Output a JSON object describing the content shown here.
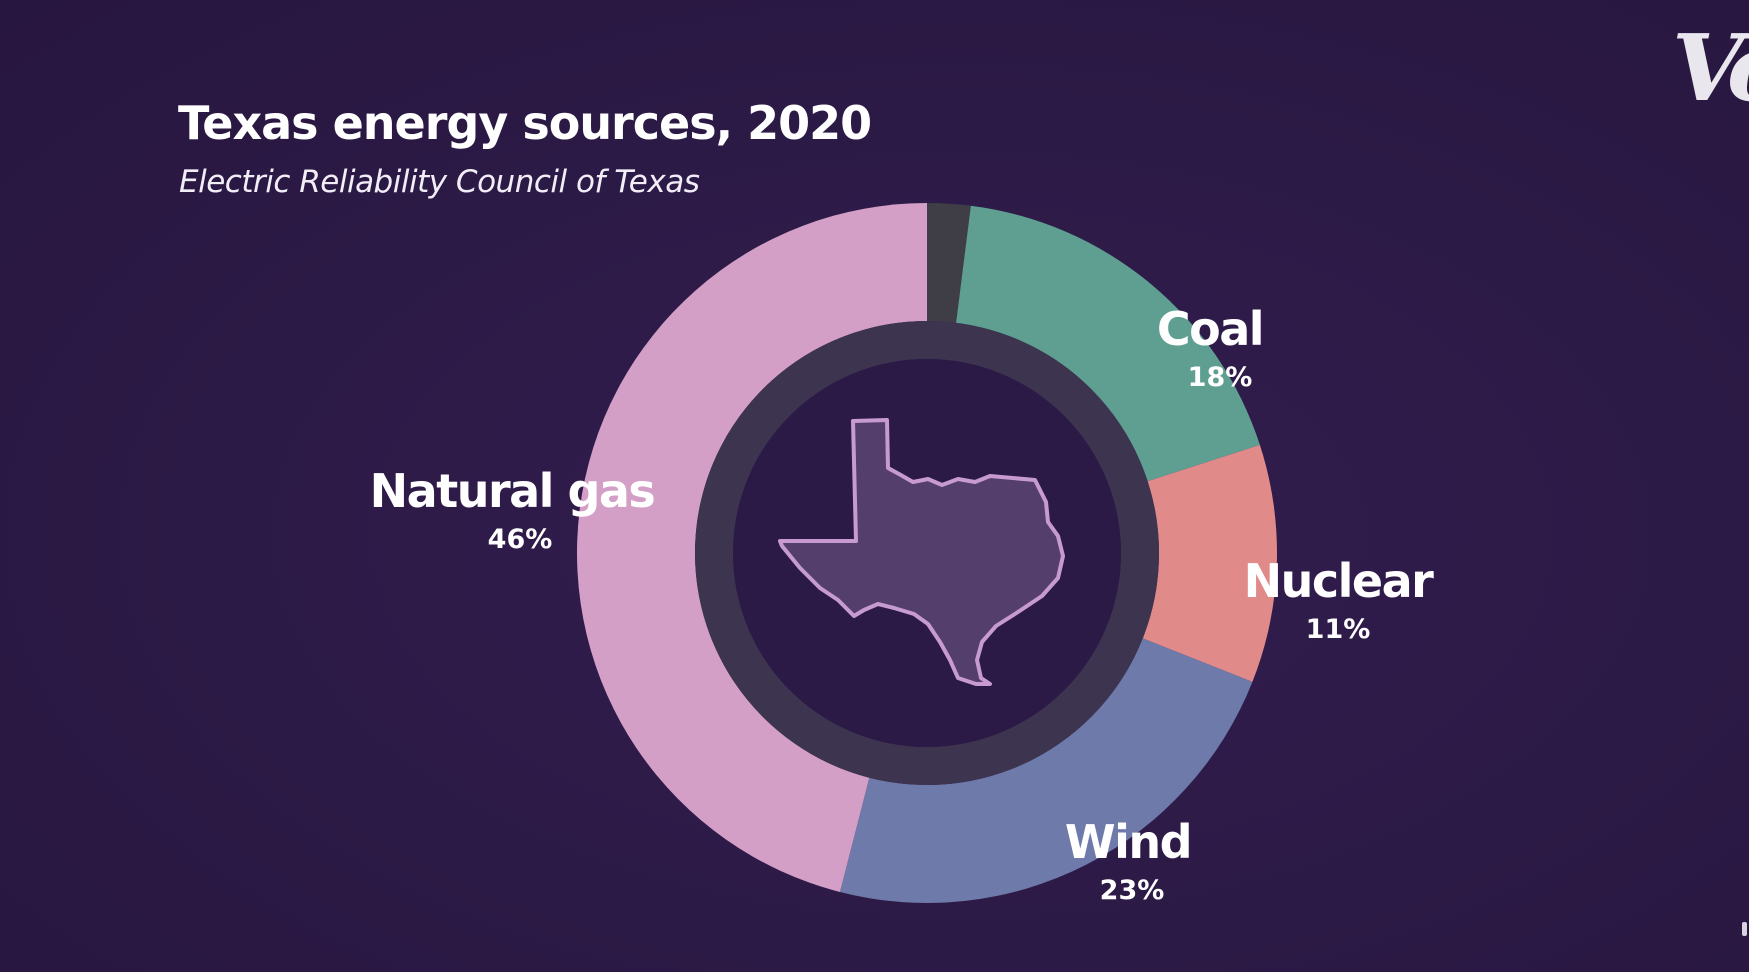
{
  "header": {
    "title": "Texas energy sources, 2020",
    "subtitle": "Electric Reliability Council of Texas"
  },
  "brand": {
    "logo_text": "Vo",
    "icon": "vox-logo"
  },
  "center_graphic": {
    "icon": "texas-outline-icon",
    "ring_color": "#3d3450",
    "fill_color": "#2c1a46"
  },
  "chart_data": {
    "type": "pie",
    "style": "donut",
    "start": "12 o'clock, clockwise",
    "slices": [
      {
        "name": "Other",
        "value": 2,
        "label": "",
        "color": "#3f3d45",
        "show_label": false
      },
      {
        "name": "Coal",
        "value": 18,
        "label": "18%",
        "color": "#5f9f91",
        "show_label": true
      },
      {
        "name": "Nuclear",
        "value": 11,
        "label": "11%",
        "color": "#e08a8a",
        "show_label": true
      },
      {
        "name": "Wind",
        "value": 23,
        "label": "23%",
        "color": "#6e7aaa",
        "show_label": true
      },
      {
        "name": "Natural gas",
        "value": 46,
        "label": "46%",
        "color": "#d39fc6",
        "show_label": true
      }
    ],
    "title": "Texas energy sources, 2020",
    "subtitle": "Electric Reliability Council of Texas",
    "legend": "none (direct labels)"
  }
}
